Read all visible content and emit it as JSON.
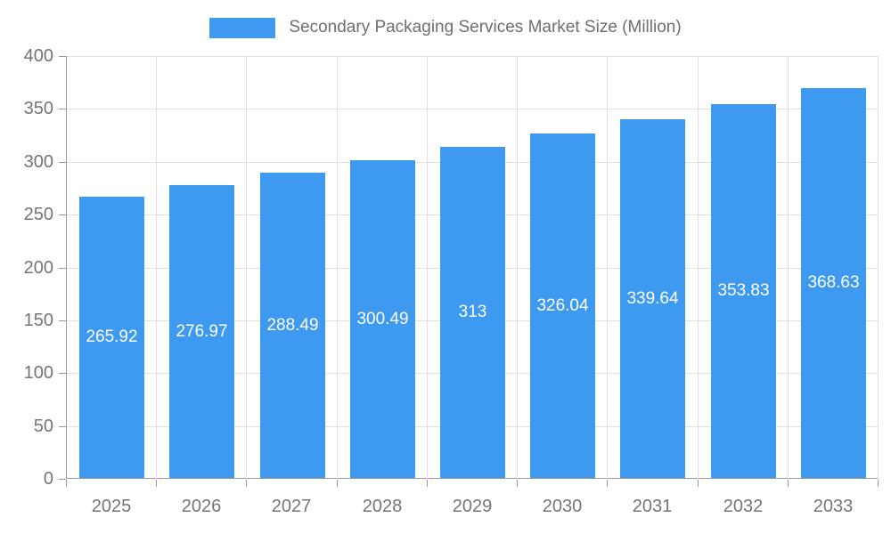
{
  "chart_data": {
    "type": "bar",
    "title": "Secondary Packaging Services Market Size (Million)",
    "categories": [
      "2025",
      "2026",
      "2027",
      "2028",
      "2029",
      "2030",
      "2031",
      "2032",
      "2033"
    ],
    "values": [
      265.92,
      276.97,
      288.49,
      300.49,
      313,
      326.04,
      339.64,
      353.83,
      368.63
    ],
    "value_labels": [
      "265.92",
      "276.97",
      "288.49",
      "300.49",
      "313",
      "326.04",
      "339.64",
      "353.83",
      "368.63"
    ],
    "xlabel": "",
    "ylabel": "",
    "ylim": [
      0,
      400
    ],
    "yticks": [
      0,
      50,
      100,
      150,
      200,
      250,
      300,
      350,
      400
    ],
    "grid": true,
    "legend_position": "top-center",
    "colors": {
      "bar": "#3D9AF0",
      "grid_line": "#E0E0E0",
      "axis_line": "#999999",
      "axis_text": "#757575",
      "legend_text": "#6E6E6E",
      "value_label_text": "#FFFFFF",
      "background": "#FFFFFF"
    }
  }
}
